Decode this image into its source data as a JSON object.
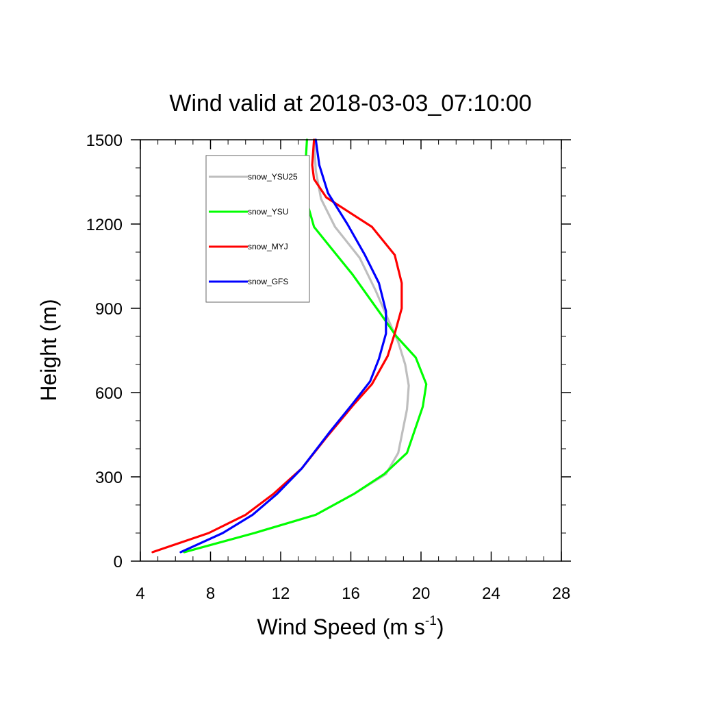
{
  "chart_data": {
    "type": "line",
    "title": "Wind valid at 2018-03-03_07:10:00",
    "xlabel": "Wind Speed (m s",
    "xlabel_superscript": "-1",
    "xlabel_suffix": ")",
    "ylabel": "Height (m)",
    "xlim": [
      4,
      28
    ],
    "ylim": [
      0,
      1500
    ],
    "xticks": [
      4,
      8,
      12,
      16,
      20,
      24,
      28
    ],
    "yticks": [
      0,
      300,
      600,
      900,
      1200,
      1500
    ],
    "xtick_labels": [
      "4",
      "8",
      "12",
      "16",
      "20",
      "24",
      "28"
    ],
    "ytick_labels": [
      "0",
      "300",
      "600",
      "900",
      "1200",
      "1500"
    ],
    "grid": false,
    "legend_position": "top-left",
    "series": [
      {
        "name": "snow_YSU25",
        "color": "#bebebe",
        "points": [
          [
            6.5,
            32
          ],
          [
            10.5,
            100
          ],
          [
            14.0,
            165
          ],
          [
            16.2,
            240
          ],
          [
            18.0,
            310
          ],
          [
            18.7,
            385
          ],
          [
            19.2,
            540
          ],
          [
            19.3,
            625
          ],
          [
            19.1,
            700
          ],
          [
            18.7,
            780
          ],
          [
            18.2,
            850
          ],
          [
            17.4,
            965
          ],
          [
            16.5,
            1080
          ],
          [
            15.1,
            1190
          ],
          [
            14.3,
            1290
          ],
          [
            14.0,
            1390
          ],
          [
            13.9,
            1500
          ]
        ]
      },
      {
        "name": "snow_YSU",
        "color": "#00ff00",
        "points": [
          [
            6.5,
            32
          ],
          [
            10.5,
            100
          ],
          [
            14.0,
            165
          ],
          [
            16.2,
            240
          ],
          [
            17.9,
            310
          ],
          [
            19.2,
            385
          ],
          [
            20.1,
            550
          ],
          [
            20.3,
            630
          ],
          [
            19.7,
            725
          ],
          [
            18.6,
            800
          ],
          [
            17.7,
            880
          ],
          [
            16.1,
            1020
          ],
          [
            14.8,
            1120
          ],
          [
            13.9,
            1190
          ],
          [
            13.4,
            1300
          ],
          [
            13.4,
            1400
          ],
          [
            13.5,
            1500
          ]
        ]
      },
      {
        "name": "snow_MYJ",
        "color": "#ff0000",
        "points": [
          [
            4.7,
            32
          ],
          [
            7.9,
            100
          ],
          [
            10.0,
            165
          ],
          [
            11.6,
            240
          ],
          [
            13.2,
            330
          ],
          [
            14.6,
            440
          ],
          [
            16.2,
            560
          ],
          [
            17.2,
            630
          ],
          [
            18.1,
            730
          ],
          [
            18.5,
            810
          ],
          [
            18.9,
            900
          ],
          [
            18.9,
            990
          ],
          [
            18.5,
            1090
          ],
          [
            17.2,
            1190
          ],
          [
            14.6,
            1295
          ],
          [
            13.9,
            1360
          ],
          [
            13.8,
            1410
          ],
          [
            13.9,
            1500
          ]
        ]
      },
      {
        "name": "snow_GFS",
        "color": "#0000ff",
        "points": [
          [
            6.3,
            32
          ],
          [
            8.7,
            100
          ],
          [
            10.4,
            165
          ],
          [
            11.8,
            240
          ],
          [
            13.2,
            330
          ],
          [
            14.8,
            460
          ],
          [
            16.1,
            560
          ],
          [
            17.1,
            640
          ],
          [
            17.6,
            720
          ],
          [
            18.0,
            810
          ],
          [
            18.0,
            890
          ],
          [
            17.6,
            990
          ],
          [
            16.8,
            1090
          ],
          [
            15.8,
            1200
          ],
          [
            14.7,
            1310
          ],
          [
            14.2,
            1410
          ],
          [
            14.0,
            1500
          ]
        ]
      }
    ]
  }
}
